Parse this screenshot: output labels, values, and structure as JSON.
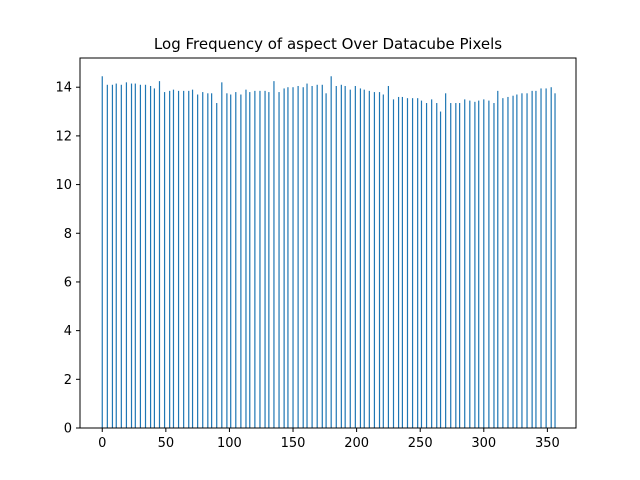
{
  "colors": {
    "bar": "#1f77b4",
    "axes": "#000000",
    "background": "#ffffff"
  },
  "chart_data": {
    "type": "bar",
    "title": "Log Frequency of aspect Over Datacube Pixels",
    "xlabel": "",
    "ylabel": "",
    "xlim": [
      -17.5,
      372.5
    ],
    "ylim": [
      0,
      15.2
    ],
    "grid": false,
    "legend": "none",
    "x_ticks": [
      0,
      50,
      100,
      150,
      200,
      250,
      300,
      350
    ],
    "y_ticks": [
      0,
      2,
      4,
      6,
      8,
      10,
      12,
      14
    ],
    "x": [
      0,
      4,
      8,
      11,
      15,
      19,
      23,
      26,
      30,
      34,
      38,
      41,
      45,
      49,
      53,
      56,
      60,
      64,
      68,
      71,
      75,
      79,
      83,
      86,
      90,
      94,
      98,
      101,
      105,
      109,
      113,
      116,
      120,
      124,
      128,
      131,
      135,
      139,
      143,
      146,
      150,
      154,
      158,
      161,
      165,
      169,
      173,
      176,
      180,
      184,
      188,
      191,
      195,
      199,
      203,
      206,
      210,
      214,
      218,
      221,
      225,
      229,
      233,
      236,
      240,
      244,
      248,
      251,
      255,
      259,
      263,
      266,
      270,
      274,
      278,
      281,
      285,
      289,
      293,
      296,
      300,
      304,
      308,
      311,
      315,
      319,
      323,
      326,
      330,
      334,
      338,
      341,
      345,
      349,
      353,
      356
    ],
    "values": [
      14.45,
      14.1,
      14.1,
      14.15,
      14.1,
      14.2,
      14.15,
      14.15,
      14.1,
      14.1,
      14.05,
      13.95,
      14.25,
      13.8,
      13.85,
      13.9,
      13.85,
      13.85,
      13.85,
      13.9,
      13.7,
      13.8,
      13.75,
      13.75,
      13.35,
      14.2,
      13.75,
      13.7,
      13.8,
      13.7,
      13.9,
      13.8,
      13.85,
      13.85,
      13.85,
      13.8,
      14.25,
      13.8,
      13.95,
      14.0,
      14.0,
      14.05,
      14.0,
      14.15,
      14.05,
      14.1,
      14.1,
      13.75,
      14.45,
      14.05,
      14.1,
      14.05,
      13.9,
      14.05,
      13.95,
      13.9,
      13.85,
      13.8,
      13.8,
      13.7,
      14.05,
      13.5,
      13.6,
      13.6,
      13.55,
      13.55,
      13.55,
      13.45,
      13.35,
      13.5,
      13.35,
      13.0,
      13.75,
      13.35,
      13.35,
      13.35,
      13.5,
      13.45,
      13.4,
      13.45,
      13.5,
      13.45,
      13.35,
      13.85,
      13.55,
      13.6,
      13.65,
      13.7,
      13.75,
      13.75,
      13.85,
      13.85,
      13.95,
      13.95,
      14.0,
      13.75
    ]
  }
}
